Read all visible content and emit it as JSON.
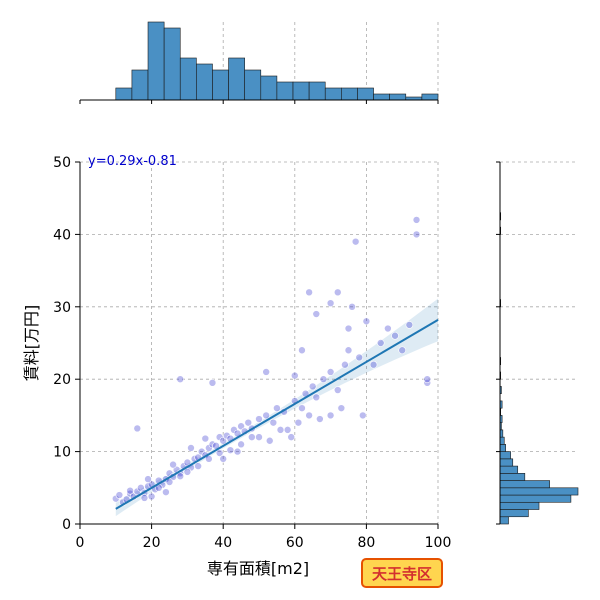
{
  "chart_data": {
    "type": "scatter",
    "xlabel": "専有面積[m2]",
    "ylabel": "賃料[万円]",
    "xlim": [
      0,
      100
    ],
    "ylim": [
      0,
      50
    ],
    "xticks": [
      0,
      20,
      40,
      60,
      80,
      100
    ],
    "yticks": [
      0,
      10,
      20,
      30,
      40,
      50
    ],
    "grid": true,
    "annotation": "y=0.29x-0.81",
    "badge": "天王寺区",
    "regression": {
      "slope": 0.29,
      "intercept": -0.81,
      "x_range": [
        10,
        100
      ]
    },
    "point_color": "#3b3bd0",
    "line_color": "#1f77b4",
    "hist_color": "#4a90c4",
    "badge_fill": "#ffd54f",
    "badge_border": "#e65100",
    "badge_text_color": "#d32f2f",
    "points": [
      [
        10,
        3.5
      ],
      [
        11,
        4.0
      ],
      [
        12,
        3.0
      ],
      [
        13,
        3.4
      ],
      [
        14,
        4.2
      ],
      [
        15,
        3.8
      ],
      [
        16,
        4.5
      ],
      [
        17,
        5.0
      ],
      [
        18,
        4.3
      ],
      [
        19,
        5.2
      ],
      [
        20,
        5.5
      ],
      [
        21,
        4.8
      ],
      [
        22,
        6.0
      ],
      [
        23,
        5.4
      ],
      [
        24,
        6.2
      ],
      [
        25,
        7.0
      ],
      [
        26,
        6.5
      ],
      [
        27,
        7.5
      ],
      [
        28,
        7.0
      ],
      [
        29,
        8.0
      ],
      [
        30,
        8.5
      ],
      [
        31,
        7.8
      ],
      [
        32,
        9.0
      ],
      [
        33,
        9.2
      ],
      [
        34,
        10.0
      ],
      [
        35,
        9.5
      ],
      [
        36,
        10.5
      ],
      [
        37,
        11.0
      ],
      [
        38,
        10.8
      ],
      [
        39,
        12.0
      ],
      [
        40,
        11.5
      ],
      [
        41,
        12.2
      ],
      [
        42,
        11.8
      ],
      [
        43,
        13.0
      ],
      [
        44,
        12.5
      ],
      [
        45,
        13.5
      ],
      [
        46,
        12.8
      ],
      [
        47,
        14.0
      ],
      [
        48,
        13.2
      ],
      [
        50,
        14.5
      ],
      [
        52,
        15.0
      ],
      [
        54,
        14.0
      ],
      [
        55,
        16.0
      ],
      [
        57,
        15.5
      ],
      [
        58,
        13.0
      ],
      [
        60,
        17.0
      ],
      [
        62,
        16.0
      ],
      [
        63,
        18.0
      ],
      [
        64,
        15.0
      ],
      [
        65,
        19.0
      ],
      [
        66,
        17.5
      ],
      [
        68,
        20.0
      ],
      [
        70,
        21.0
      ],
      [
        72,
        18.5
      ],
      [
        74,
        22.0
      ],
      [
        75,
        24.0
      ],
      [
        77,
        39.0
      ],
      [
        78,
        23.0
      ],
      [
        80,
        28.0
      ],
      [
        82,
        22.0
      ],
      [
        84,
        25.0
      ],
      [
        86,
        27.0
      ],
      [
        88,
        26.0
      ],
      [
        90,
        24.0
      ],
      [
        92,
        27.5
      ],
      [
        94,
        40.0
      ],
      [
        94,
        42.0
      ],
      [
        97,
        19.5
      ],
      [
        97,
        20.0
      ],
      [
        14,
        4.6
      ],
      [
        18,
        3.6
      ],
      [
        22,
        5.0
      ],
      [
        25,
        5.8
      ],
      [
        28,
        6.6
      ],
      [
        30,
        7.2
      ],
      [
        33,
        8.0
      ],
      [
        36,
        9.0
      ],
      [
        39,
        9.8
      ],
      [
        42,
        10.2
      ],
      [
        45,
        11.0
      ],
      [
        48,
        12.0
      ],
      [
        16,
        13.2
      ],
      [
        28,
        20.0
      ],
      [
        37,
        19.5
      ],
      [
        52,
        21.0
      ],
      [
        62,
        24.0
      ],
      [
        64,
        32.0
      ],
      [
        66,
        29.0
      ],
      [
        70,
        30.5
      ],
      [
        72,
        32.0
      ],
      [
        75,
        27.0
      ],
      [
        76,
        30.0
      ],
      [
        60,
        20.5
      ],
      [
        20,
        3.8
      ],
      [
        24,
        4.4
      ],
      [
        19,
        6.2
      ],
      [
        26,
        8.2
      ],
      [
        31,
        10.5
      ],
      [
        35,
        11.8
      ],
      [
        40,
        9.0
      ],
      [
        44,
        10.0
      ],
      [
        50,
        12.0
      ],
      [
        53,
        11.5
      ],
      [
        56,
        13.0
      ],
      [
        59,
        12.0
      ],
      [
        61,
        14.0
      ],
      [
        67,
        14.5
      ],
      [
        70,
        15.0
      ],
      [
        73,
        16.0
      ],
      [
        79,
        15.0
      ]
    ],
    "top_hist_counts": [
      2,
      5,
      13,
      12,
      7,
      6,
      5,
      7,
      5,
      4,
      3,
      3,
      3,
      2,
      2,
      2,
      1,
      1,
      0.5,
      1
    ],
    "right_hist_counts": [
      1.2,
      4.0,
      5.5,
      10.0,
      11.0,
      7.0,
      3.5,
      2.5,
      1.8,
      1.5,
      0.8,
      0.6,
      0.4,
      0.2,
      0.3,
      0.1,
      0.3,
      0.0,
      0.2,
      0.0,
      0.1,
      0.0,
      0.1,
      0.0,
      0.0,
      0.0,
      0.0,
      0.0,
      0.0,
      0.0,
      0.1,
      0.0,
      0.0,
      0.0,
      0.0,
      0.0,
      0.0,
      0.0,
      0.0,
      0.0,
      0.1,
      0.0,
      0.1,
      0.0,
      0.0,
      0.0,
      0.0,
      0.0,
      0.0,
      0.0
    ]
  }
}
